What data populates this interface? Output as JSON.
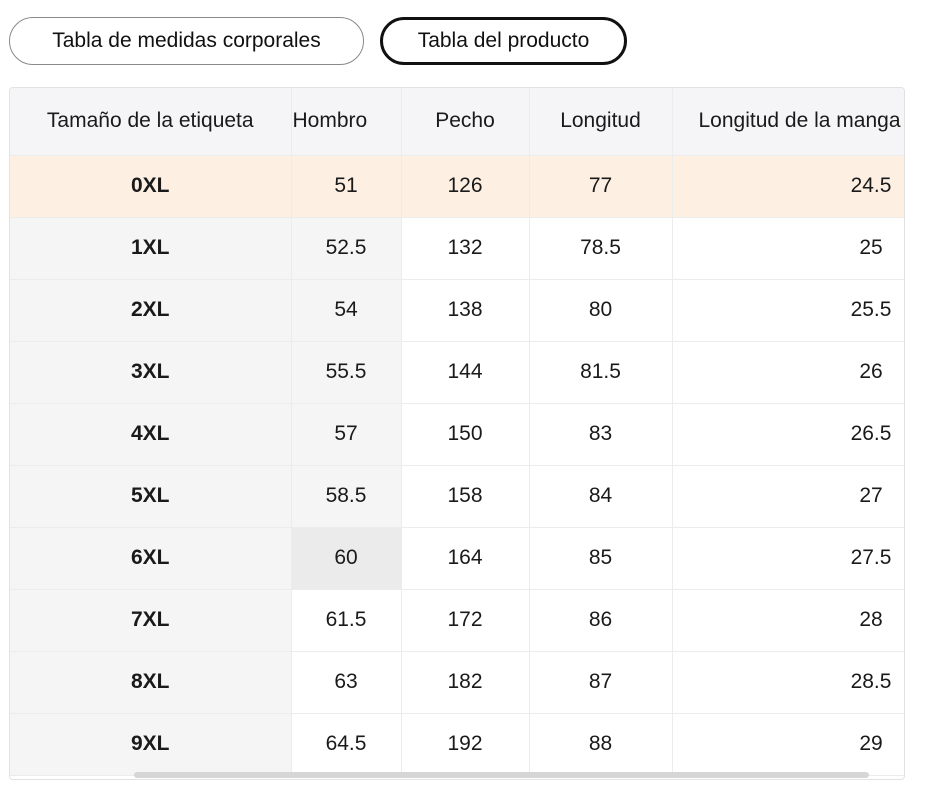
{
  "tabs": {
    "body_chart_label": "Tabla de medidas corporales",
    "product_chart_label": "Tabla del producto"
  },
  "table": {
    "headers": [
      "Tamaño de la etiqueta",
      "Hombro",
      "Pecho",
      "Longitud",
      "Longitud de la manga"
    ],
    "rows": [
      {
        "size": "0XL",
        "shoulder": "51",
        "chest": "126",
        "length": "77",
        "sleeve": "24.5"
      },
      {
        "size": "1XL",
        "shoulder": "52.5",
        "chest": "132",
        "length": "78.5",
        "sleeve": "25"
      },
      {
        "size": "2XL",
        "shoulder": "54",
        "chest": "138",
        "length": "80",
        "sleeve": "25.5"
      },
      {
        "size": "3XL",
        "shoulder": "55.5",
        "chest": "144",
        "length": "81.5",
        "sleeve": "26"
      },
      {
        "size": "4XL",
        "shoulder": "57",
        "chest": "150",
        "length": "83",
        "sleeve": "26.5"
      },
      {
        "size": "5XL",
        "shoulder": "58.5",
        "chest": "158",
        "length": "84",
        "sleeve": "27"
      },
      {
        "size": "6XL",
        "shoulder": "60",
        "chest": "164",
        "length": "85",
        "sleeve": "27.5"
      },
      {
        "size": "7XL",
        "shoulder": "61.5",
        "chest": "172",
        "length": "86",
        "sleeve": "28"
      },
      {
        "size": "8XL",
        "shoulder": "63",
        "chest": "182",
        "length": "87",
        "sleeve": "28.5"
      },
      {
        "size": "9XL",
        "shoulder": "64.5",
        "chest": "192",
        "length": "88",
        "sleeve": "29"
      }
    ]
  },
  "colors": {
    "highlight_row": "#fdf0e3",
    "header_bg": "#f5f5f7",
    "active_tab_border": "#111111"
  }
}
